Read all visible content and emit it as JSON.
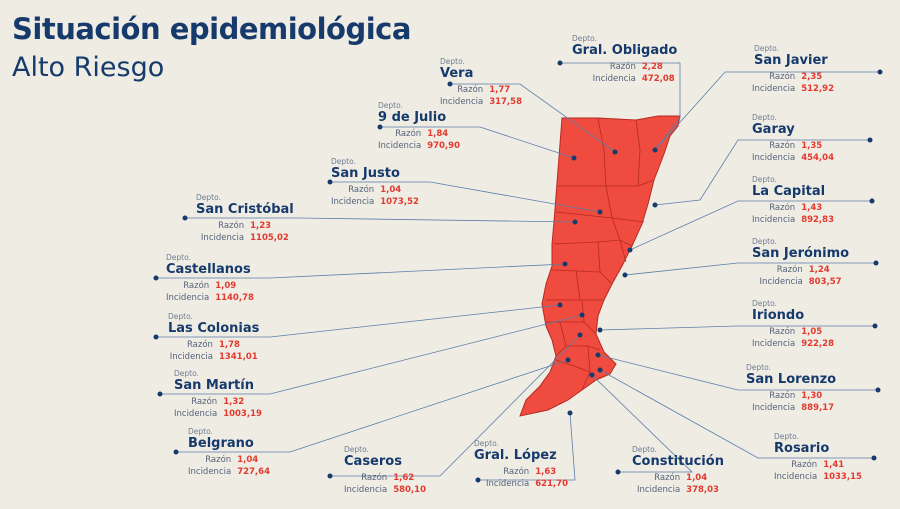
{
  "title": "Situación epidemiológica",
  "subtitle": "Alto Riesgo",
  "colors": {
    "map_fill": "#ef4b3e",
    "map_border": "#b62a22",
    "title": "#163a6b",
    "value": "#e23a2e",
    "background": "#efece4"
  },
  "callouts": [
    {
      "id": "gral-obligado",
      "label": "Depto.",
      "name": "Gral. Obligado",
      "rows": [
        {
          "k": "Razón",
          "v": "2,28"
        },
        {
          "k": "Incidencia",
          "v": "472,08"
        }
      ]
    },
    {
      "id": "vera",
      "label": "Depto.",
      "name": "Vera",
      "rows": [
        {
          "k": "Razón",
          "v": "1,77"
        },
        {
          "k": "Incidencia",
          "v": "317,58"
        }
      ]
    },
    {
      "id": "san-javier",
      "label": "Depto.",
      "name": "San Javier",
      "rows": [
        {
          "k": "Razón",
          "v": "2,35"
        },
        {
          "k": "Incidencia",
          "v": "512,92"
        }
      ]
    },
    {
      "id": "9-de-julio",
      "label": "Depto.",
      "name": "9 de Julio",
      "rows": [
        {
          "k": "Razón",
          "v": "1,84"
        },
        {
          "k": "Incidencia",
          "v": "970,90"
        }
      ]
    },
    {
      "id": "garay",
      "label": "Depto.",
      "name": "Garay",
      "rows": [
        {
          "k": "Razón",
          "v": "1,35"
        },
        {
          "k": "Incidencia",
          "v": "454,04"
        }
      ]
    },
    {
      "id": "san-justo",
      "label": "Depto.",
      "name": "San Justo",
      "rows": [
        {
          "k": "Razón",
          "v": "1,04"
        },
        {
          "k": "Incidencia",
          "v": "1073,52"
        }
      ]
    },
    {
      "id": "la-capital",
      "label": "Depto.",
      "name": "La Capital",
      "rows": [
        {
          "k": "Razón",
          "v": "1,43"
        },
        {
          "k": "Incidencia",
          "v": "892,83"
        }
      ]
    },
    {
      "id": "san-cristobal",
      "label": "Depto.",
      "name": "San Cristóbal",
      "rows": [
        {
          "k": "Razón",
          "v": "1,23"
        },
        {
          "k": "Incidencia",
          "v": "1105,02"
        }
      ]
    },
    {
      "id": "san-jeronimo",
      "label": "Depto.",
      "name": "San Jerónimo",
      "rows": [
        {
          "k": "Razón",
          "v": "1,24"
        },
        {
          "k": "Incidencia",
          "v": "803,57"
        }
      ]
    },
    {
      "id": "castellanos",
      "label": "Depto.",
      "name": "Castellanos",
      "rows": [
        {
          "k": "Razón",
          "v": "1,09"
        },
        {
          "k": "Incidencia",
          "v": "1140,78"
        }
      ]
    },
    {
      "id": "iriondo",
      "label": "Depto.",
      "name": "Iriondo",
      "rows": [
        {
          "k": "Razón",
          "v": "1,05"
        },
        {
          "k": "Incidencia",
          "v": "922,28"
        }
      ]
    },
    {
      "id": "las-colonias",
      "label": "Depto.",
      "name": "Las Colonias",
      "rows": [
        {
          "k": "Razón",
          "v": "1,78"
        },
        {
          "k": "Incidencia",
          "v": "1341,01"
        }
      ]
    },
    {
      "id": "san-lorenzo",
      "label": "Depto.",
      "name": "San Lorenzo",
      "rows": [
        {
          "k": "Razón",
          "v": "1,30"
        },
        {
          "k": "Incidencia",
          "v": "889,17"
        }
      ]
    },
    {
      "id": "san-martin",
      "label": "Depto.",
      "name": "San Martín",
      "rows": [
        {
          "k": "Razón",
          "v": "1,32"
        },
        {
          "k": "Incidencia",
          "v": "1003,19"
        }
      ]
    },
    {
      "id": "rosario",
      "label": "Depto.",
      "name": "Rosario",
      "rows": [
        {
          "k": "Razón",
          "v": "1,41"
        },
        {
          "k": "Incidencia",
          "v": "1033,15"
        }
      ]
    },
    {
      "id": "belgrano",
      "label": "Depto.",
      "name": "Belgrano",
      "rows": [
        {
          "k": "Razón",
          "v": "1,04"
        },
        {
          "k": "Incidencia",
          "v": "727,64"
        }
      ]
    },
    {
      "id": "caseros",
      "label": "Depto.",
      "name": "Caseros",
      "rows": [
        {
          "k": "Razón",
          "v": "1,62"
        },
        {
          "k": "Incidencia",
          "v": "580,10"
        }
      ]
    },
    {
      "id": "gral-lopez",
      "label": "Depto.",
      "name": "Gral. López",
      "rows": [
        {
          "k": "Razón",
          "v": "1,63"
        },
        {
          "k": "Incidencia",
          "v": "621,70"
        }
      ]
    },
    {
      "id": "constitucion",
      "label": "Depto.",
      "name": "Constitución",
      "rows": [
        {
          "k": "Razón",
          "v": "1,04"
        },
        {
          "k": "Incidencia",
          "v": "378,03"
        }
      ]
    }
  ]
}
